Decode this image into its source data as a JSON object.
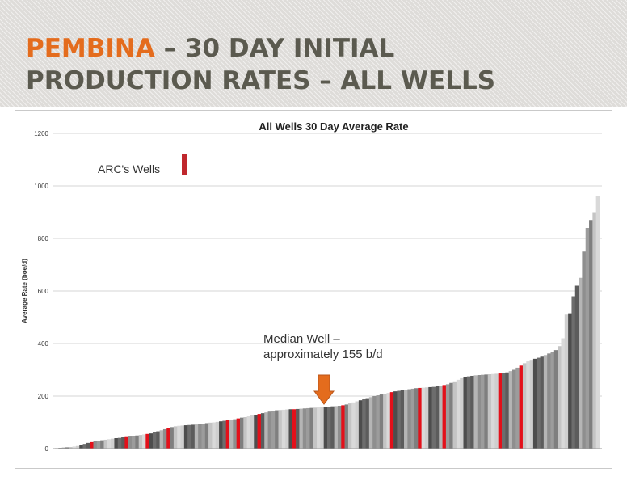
{
  "slide": {
    "title_highlight": "PEMBINA",
    "title_rest_line1": " – 30 DAY INITIAL",
    "title_line2": "PRODUCTION RATES – ALL WELLS"
  },
  "colors": {
    "accent_orange": "#e46c1d",
    "title_gray": "#5b5a4f",
    "arc_well_red": "#e3101a",
    "other_well_grays": [
      "#b5b5b5",
      "#7f7f7f",
      "#cfcfcf",
      "#5c5c5c",
      "#9c9c9c",
      "#d9d9d9",
      "#6d6d6d",
      "#8e8e8e",
      "#c4c4c4",
      "#4d4d4d"
    ]
  },
  "legend": {
    "label": "ARC's Wells"
  },
  "annotation": {
    "line1": "Median Well –",
    "line2": "approximately 155 b/d",
    "median_value": 155
  },
  "chart_data": {
    "type": "bar",
    "title": "All Wells 30 Day Average Rate",
    "xlabel": "",
    "ylabel": "Average Rate (boe/d)",
    "ylim": [
      0,
      1200
    ],
    "yticks": [
      0,
      200,
      400,
      600,
      800,
      1000,
      1200
    ],
    "grid": true,
    "legend_position": "top-left",
    "series": [
      {
        "values": [
          2,
          3,
          4,
          5,
          6,
          8,
          10,
          14,
          18,
          22,
          25,
          28,
          30,
          32,
          34,
          36,
          38,
          40,
          41,
          43,
          44,
          46,
          48,
          50,
          52,
          54,
          56,
          58,
          62,
          66,
          70,
          74,
          78,
          82,
          85,
          87,
          88,
          89,
          90,
          91,
          92,
          93,
          95,
          97,
          99,
          100,
          102,
          104,
          106,
          108,
          110,
          112,
          115,
          118,
          120,
          123,
          126,
          129,
          132,
          135,
          138,
          141,
          144,
          146,
          147,
          148,
          149,
          150,
          150,
          151,
          152,
          153,
          154,
          155,
          156,
          157,
          158,
          159,
          160,
          161,
          162,
          163,
          165,
          168,
          172,
          176,
          180,
          184,
          188,
          192,
          196,
          200,
          203,
          206,
          209,
          212,
          215,
          218,
          220,
          222,
          224,
          226,
          228,
          230,
          231,
          232,
          233,
          234,
          235,
          237,
          239,
          242,
          245,
          250,
          256,
          262,
          268,
          272,
          275,
          277,
          279,
          280,
          281,
          282,
          283,
          284,
          285,
          286,
          288,
          290,
          295,
          300,
          308,
          316,
          325,
          332,
          338,
          342,
          346,
          350,
          356,
          362,
          368,
          375,
          390,
          420,
          510,
          515,
          580,
          620,
          650,
          750,
          840,
          870,
          900,
          960
        ],
        "arc_well_indices": [
          10,
          20,
          26,
          32,
          49,
          52,
          58,
          68,
          82,
          96,
          104,
          111,
          127,
          133
        ]
      }
    ]
  }
}
